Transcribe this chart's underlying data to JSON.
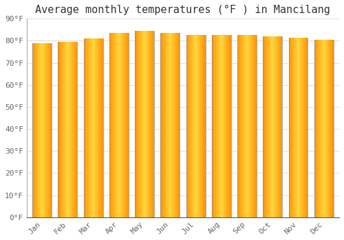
{
  "title": "Average monthly temperatures (°F ) in Mancilang",
  "months": [
    "Jan",
    "Feb",
    "Mar",
    "Apr",
    "May",
    "Jun",
    "Jul",
    "Aug",
    "Sep",
    "Oct",
    "Nov",
    "Dec"
  ],
  "values": [
    79.0,
    79.5,
    81.0,
    83.5,
    84.5,
    83.5,
    82.5,
    82.5,
    82.5,
    82.0,
    81.5,
    80.5
  ],
  "bar_color_center": "#FFB300",
  "bar_color_edge": "#E08000",
  "background_color": "#FFFFFF",
  "plot_bg_color": "#FFFFFF",
  "grid_color": "#DDDDDD",
  "ylim": [
    0,
    90
  ],
  "yticks": [
    0,
    10,
    20,
    30,
    40,
    50,
    60,
    70,
    80,
    90
  ],
  "ytick_labels": [
    "0°F",
    "10°F",
    "20°F",
    "30°F",
    "40°F",
    "50°F",
    "60°F",
    "70°F",
    "80°F",
    "90°F"
  ],
  "title_fontsize": 11,
  "tick_fontsize": 8,
  "font_family": "monospace"
}
